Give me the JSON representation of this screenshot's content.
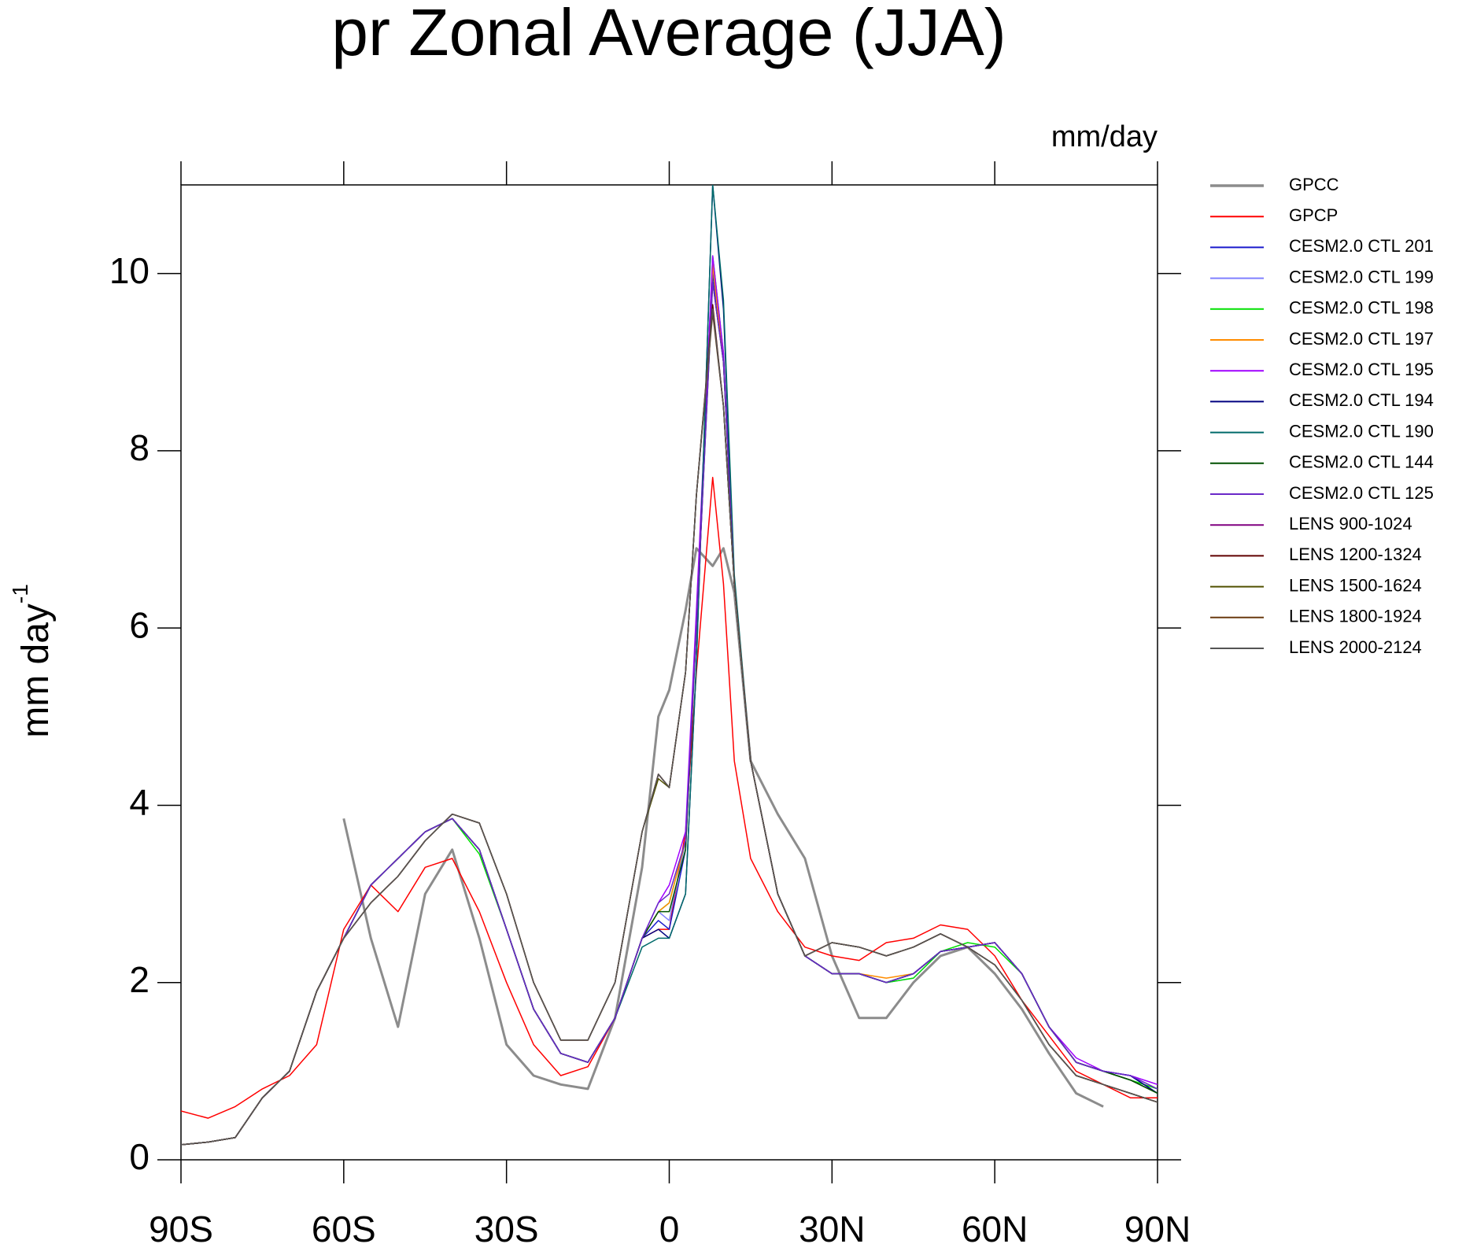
{
  "chart_data": {
    "type": "line",
    "title": "pr Zonal Average (JJA)",
    "units_label": "mm/day",
    "ylabel": "mm day",
    "ylabel_sup": "-1",
    "xlim": [
      -90,
      90
    ],
    "ylim": [
      0,
      11
    ],
    "xticks": [
      {
        "value": -90,
        "label": "90S"
      },
      {
        "value": -60,
        "label": "60S"
      },
      {
        "value": -30,
        "label": "30S"
      },
      0,
      {
        "value": 30,
        "label": "30N"
      },
      {
        "value": 60,
        "label": "60N"
      },
      {
        "value": 90,
        "label": "90N"
      }
    ],
    "yticks": [
      0,
      2,
      4,
      6,
      8,
      10
    ],
    "x": [
      -90,
      -85,
      -80,
      -75,
      -70,
      -65,
      -60,
      -55,
      -50,
      -45,
      -40,
      -35,
      -30,
      -25,
      -20,
      -15,
      -10,
      -5,
      -2,
      0,
      3,
      5,
      8,
      10,
      12,
      15,
      20,
      25,
      30,
      35,
      40,
      45,
      50,
      55,
      60,
      65,
      70,
      75,
      80,
      85,
      90
    ],
    "series": [
      {
        "name": "GPCC",
        "color": "#8c8c8c",
        "width": 3,
        "values": [
          null,
          null,
          null,
          null,
          null,
          null,
          3.85,
          2.5,
          1.5,
          3.0,
          3.5,
          2.5,
          1.3,
          0.95,
          0.85,
          0.8,
          1.6,
          3.3,
          5.0,
          5.3,
          6.2,
          6.9,
          6.7,
          6.9,
          6.4,
          4.5,
          3.9,
          3.4,
          2.3,
          1.6,
          1.6,
          2.0,
          2.3,
          2.4,
          2.1,
          1.7,
          1.2,
          0.75,
          0.6,
          null,
          null
        ]
      },
      {
        "name": "GPCP",
        "color": "#ff0000",
        "width": 1.5,
        "values": [
          0.55,
          0.47,
          0.6,
          0.8,
          0.95,
          1.3,
          2.6,
          3.1,
          2.8,
          3.3,
          3.4,
          2.8,
          2.0,
          1.3,
          0.95,
          1.05,
          1.6,
          2.5,
          2.6,
          2.6,
          3.7,
          5.5,
          7.7,
          6.5,
          4.5,
          3.4,
          2.8,
          2.4,
          2.3,
          2.25,
          2.45,
          2.5,
          2.65,
          2.6,
          2.3,
          1.8,
          1.4,
          1.0,
          0.85,
          0.7,
          0.7
        ]
      },
      {
        "name": "CESM2.0 CTL 201",
        "color": "#1a1acc",
        "width": 1.5,
        "values": [
          0.17,
          0.2,
          0.25,
          0.7,
          1.0,
          1.9,
          2.5,
          3.1,
          3.4,
          3.7,
          3.85,
          3.5,
          2.6,
          1.7,
          1.2,
          1.1,
          1.6,
          2.5,
          2.7,
          2.6,
          3.5,
          6.0,
          10.0,
          9.0,
          6.5,
          4.5,
          3.0,
          2.3,
          2.1,
          2.1,
          2.0,
          2.1,
          2.35,
          2.4,
          2.45,
          2.1,
          1.5,
          1.1,
          1.0,
          0.95,
          0.75
        ]
      },
      {
        "name": "CESM2.0 CTL 199",
        "color": "#8080ff",
        "width": 1.5,
        "values": [
          0.17,
          0.2,
          0.25,
          0.7,
          1.0,
          1.9,
          2.5,
          3.1,
          3.4,
          3.7,
          3.85,
          3.5,
          2.6,
          1.7,
          1.2,
          1.1,
          1.6,
          2.5,
          2.8,
          2.7,
          3.6,
          6.1,
          10.1,
          9.0,
          6.5,
          4.5,
          3.0,
          2.3,
          2.1,
          2.1,
          2.0,
          2.05,
          2.35,
          2.4,
          2.45,
          2.1,
          1.5,
          1.1,
          1.0,
          0.95,
          0.8
        ]
      },
      {
        "name": "CESM2.0 CTL 198",
        "color": "#00e000",
        "width": 1.5,
        "values": [
          0.17,
          0.2,
          0.25,
          0.7,
          1.0,
          1.9,
          2.5,
          3.1,
          3.4,
          3.7,
          3.85,
          3.45,
          2.6,
          1.7,
          1.2,
          1.1,
          1.6,
          2.5,
          2.8,
          2.9,
          3.6,
          6.1,
          10.2,
          9.1,
          6.5,
          4.5,
          3.0,
          2.3,
          2.1,
          2.1,
          2.0,
          2.05,
          2.35,
          2.45,
          2.4,
          2.1,
          1.5,
          1.1,
          1.0,
          0.9,
          0.8
        ]
      },
      {
        "name": "CESM2.0 CTL 197",
        "color": "#ff8c00",
        "width": 1.5,
        "values": [
          0.17,
          0.2,
          0.25,
          0.7,
          1.0,
          1.9,
          2.5,
          3.1,
          3.4,
          3.7,
          3.85,
          3.5,
          2.6,
          1.7,
          1.2,
          1.1,
          1.6,
          2.5,
          2.8,
          2.9,
          3.6,
          6.0,
          10.1,
          9.0,
          6.5,
          4.5,
          3.0,
          2.3,
          2.1,
          2.1,
          2.05,
          2.1,
          2.35,
          2.4,
          2.45,
          2.1,
          1.5,
          1.1,
          1.0,
          0.9,
          0.75
        ]
      },
      {
        "name": "CESM2.0 CTL 195",
        "color": "#a000ff",
        "width": 1.5,
        "values": [
          0.17,
          0.2,
          0.25,
          0.7,
          1.0,
          1.9,
          2.5,
          3.1,
          3.4,
          3.7,
          3.85,
          3.5,
          2.6,
          1.7,
          1.2,
          1.1,
          1.6,
          2.5,
          2.9,
          3.1,
          3.7,
          6.2,
          10.2,
          9.1,
          6.5,
          4.5,
          3.0,
          2.3,
          2.1,
          2.1,
          2.0,
          2.1,
          2.35,
          2.4,
          2.45,
          2.1,
          1.5,
          1.15,
          1.0,
          0.95,
          0.85
        ]
      },
      {
        "name": "CESM2.0 CTL 194",
        "color": "#000080",
        "width": 1.5,
        "values": [
          0.17,
          0.2,
          0.25,
          0.7,
          1.0,
          1.9,
          2.5,
          3.1,
          3.4,
          3.7,
          3.85,
          3.5,
          2.6,
          1.7,
          1.2,
          1.1,
          1.6,
          2.5,
          2.6,
          2.5,
          3.0,
          5.6,
          11.0,
          9.6,
          6.5,
          4.5,
          3.0,
          2.3,
          2.1,
          2.1,
          2.0,
          2.1,
          2.35,
          2.4,
          2.45,
          2.1,
          1.5,
          1.1,
          1.0,
          0.95,
          0.75
        ]
      },
      {
        "name": "CESM2.0 CTL 190",
        "color": "#006a6a",
        "width": 1.5,
        "values": [
          0.17,
          0.2,
          0.25,
          0.7,
          1.0,
          1.9,
          2.5,
          3.1,
          3.4,
          3.7,
          3.85,
          3.5,
          2.6,
          1.7,
          1.2,
          1.1,
          1.6,
          2.4,
          2.5,
          2.5,
          3.0,
          5.6,
          11.0,
          9.7,
          6.6,
          4.5,
          3.0,
          2.3,
          2.1,
          2.1,
          2.0,
          2.1,
          2.35,
          2.4,
          2.45,
          2.1,
          1.5,
          1.1,
          1.0,
          0.9,
          0.75
        ]
      },
      {
        "name": "CESM2.0 CTL 144",
        "color": "#005000",
        "width": 1.5,
        "values": [
          0.17,
          0.2,
          0.25,
          0.7,
          1.0,
          1.9,
          2.5,
          3.1,
          3.4,
          3.7,
          3.85,
          3.5,
          2.6,
          1.7,
          1.2,
          1.1,
          1.6,
          2.5,
          2.8,
          2.8,
          3.5,
          6.0,
          9.9,
          9.0,
          6.5,
          4.5,
          3.0,
          2.3,
          2.1,
          2.1,
          2.0,
          2.1,
          2.35,
          2.4,
          2.45,
          2.1,
          1.5,
          1.1,
          1.0,
          0.9,
          0.75
        ]
      },
      {
        "name": "CESM2.0 CTL 125",
        "color": "#6a28c8",
        "width": 1.5,
        "values": [
          0.17,
          0.2,
          0.25,
          0.7,
          1.0,
          1.9,
          2.5,
          3.1,
          3.4,
          3.7,
          3.85,
          3.5,
          2.6,
          1.7,
          1.2,
          1.1,
          1.6,
          2.5,
          2.9,
          3.0,
          3.6,
          6.0,
          9.9,
          9.0,
          6.5,
          4.5,
          3.0,
          2.3,
          2.1,
          2.1,
          2.0,
          2.1,
          2.35,
          2.4,
          2.45,
          2.1,
          1.5,
          1.1,
          1.0,
          0.95,
          0.8
        ]
      },
      {
        "name": "LENS 900-1024",
        "color": "#800080",
        "width": 1.5,
        "values": [
          0.17,
          0.2,
          0.25,
          0.7,
          1.0,
          1.9,
          2.5,
          2.9,
          3.2,
          3.6,
          3.9,
          3.8,
          3.0,
          2.0,
          1.35,
          1.35,
          2.0,
          3.7,
          4.35,
          4.2,
          5.5,
          7.5,
          9.6,
          8.5,
          6.5,
          4.5,
          3.0,
          2.3,
          2.45,
          2.4,
          2.3,
          2.4,
          2.55,
          2.4,
          2.2,
          1.8,
          1.3,
          0.95,
          0.85,
          0.75,
          0.65
        ]
      },
      {
        "name": "LENS 1200-1324",
        "color": "#600000",
        "width": 1.5,
        "values": [
          0.17,
          0.2,
          0.25,
          0.7,
          1.0,
          1.9,
          2.5,
          2.9,
          3.2,
          3.6,
          3.9,
          3.8,
          3.0,
          2.0,
          1.35,
          1.35,
          2.0,
          3.7,
          4.35,
          4.2,
          5.5,
          7.5,
          9.65,
          8.5,
          6.5,
          4.5,
          3.0,
          2.3,
          2.45,
          2.4,
          2.3,
          2.4,
          2.55,
          2.4,
          2.2,
          1.8,
          1.3,
          0.95,
          0.85,
          0.75,
          0.65
        ]
      },
      {
        "name": "LENS 1500-1624",
        "color": "#505000",
        "width": 1.5,
        "values": [
          0.17,
          0.2,
          0.25,
          0.7,
          1.0,
          1.9,
          2.5,
          2.9,
          3.2,
          3.6,
          3.9,
          3.8,
          3.0,
          2.0,
          1.35,
          1.35,
          2.0,
          3.7,
          4.3,
          4.2,
          5.5,
          7.5,
          9.6,
          8.5,
          6.5,
          4.5,
          3.0,
          2.3,
          2.45,
          2.4,
          2.3,
          2.4,
          2.55,
          2.4,
          2.2,
          1.8,
          1.3,
          0.95,
          0.85,
          0.75,
          0.65
        ]
      },
      {
        "name": "LENS 1800-1924",
        "color": "#6a3a10",
        "width": 1.5,
        "values": [
          0.17,
          0.2,
          0.25,
          0.7,
          1.0,
          1.9,
          2.5,
          2.9,
          3.2,
          3.6,
          3.9,
          3.8,
          3.0,
          2.0,
          1.35,
          1.35,
          2.0,
          3.7,
          4.35,
          4.2,
          5.5,
          7.5,
          9.55,
          8.5,
          6.5,
          4.5,
          3.0,
          2.3,
          2.45,
          2.4,
          2.3,
          2.4,
          2.55,
          2.4,
          2.2,
          1.8,
          1.3,
          0.95,
          0.85,
          0.75,
          0.65
        ]
      },
      {
        "name": "LENS 2000-2124",
        "color": "#555555",
        "width": 1.5,
        "values": [
          0.17,
          0.2,
          0.25,
          0.7,
          1.0,
          1.9,
          2.5,
          2.9,
          3.2,
          3.6,
          3.9,
          3.8,
          3.0,
          2.0,
          1.35,
          1.35,
          2.0,
          3.7,
          4.35,
          4.2,
          5.5,
          7.5,
          9.6,
          8.5,
          6.5,
          4.5,
          3.0,
          2.3,
          2.45,
          2.4,
          2.3,
          2.4,
          2.55,
          2.4,
          2.2,
          1.8,
          1.3,
          0.95,
          0.85,
          0.75,
          0.65
        ]
      }
    ]
  }
}
